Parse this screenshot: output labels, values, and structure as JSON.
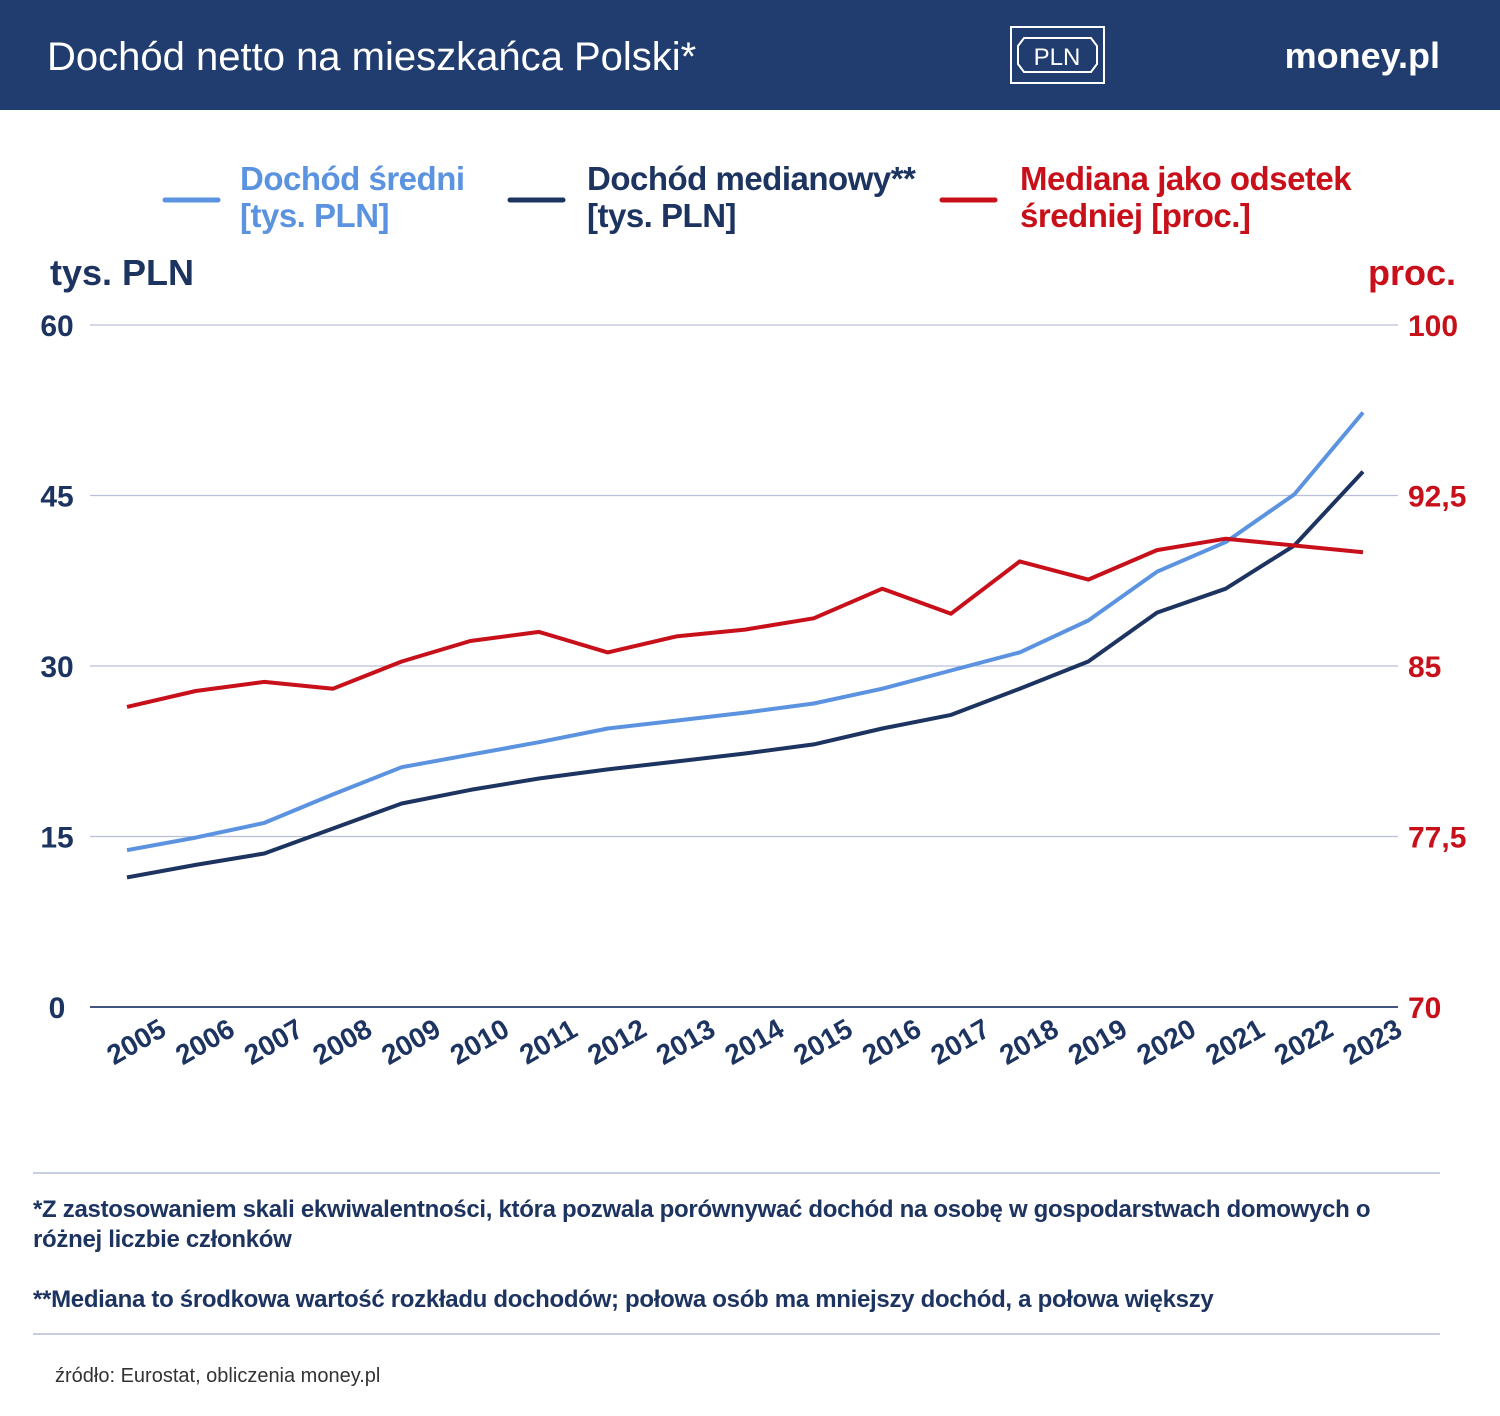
{
  "chart_data": {
    "type": "line",
    "title": "Dochód netto na mieszkańca Polski*",
    "badge": "PLN",
    "brand": "money.pl",
    "y_label": "tys. PLN",
    "y2_label": "proc.",
    "categories": [
      "2005",
      "2006",
      "2007",
      "2008",
      "2009",
      "2010",
      "2011",
      "2012",
      "2013",
      "2014",
      "2015",
      "2016",
      "2017",
      "2018",
      "2019",
      "2020",
      "2021",
      "2022",
      "2023"
    ],
    "series": [
      {
        "name": "Dochód średni\n[tys. PLN]",
        "color": "#5b93e0",
        "values": [
          13.8,
          14.9,
          16.2,
          18.7,
          21.1,
          22.2,
          23.3,
          24.5,
          25.2,
          25.9,
          26.7,
          28.0,
          29.6,
          31.2,
          34.0,
          38.3,
          40.9,
          45.1,
          52.3
        ]
      },
      {
        "name": "Dochód medianowy**\n[tys. PLN]",
        "color": "#1d3461",
        "values": [
          11.4,
          12.5,
          13.5,
          15.7,
          17.9,
          19.1,
          20.1,
          20.9,
          21.6,
          22.3,
          23.1,
          24.5,
          25.7,
          28.0,
          30.4,
          34.7,
          36.8,
          40.6,
          47.1
        ]
      },
      {
        "name": "Mediana jako odsetek\nśredniej [proc.]",
        "color": "#c8101a",
        "axis": "y2",
        "values": [
          83.2,
          83.9,
          84.3,
          84.0,
          85.2,
          86.1,
          86.5,
          85.6,
          86.3,
          86.6,
          87.1,
          88.4,
          87.3,
          89.6,
          88.8,
          90.1,
          90.6,
          90.3,
          90.0
        ]
      }
    ],
    "ylim": [
      0,
      60
    ],
    "yticks": [
      0,
      15,
      30,
      45,
      60
    ],
    "y2lim": [
      70,
      100
    ],
    "y2ticks": [
      70,
      {
        "value": 77.5,
        "label": "77,5"
      },
      85,
      {
        "value": 92.5,
        "label": "92,5"
      },
      100
    ],
    "grid": true,
    "footnotes": [
      "*Z zastosowaniem skali ekwiwalentności, która pozwala porównywać dochód na osobę w gospodarstwach domowych o różnej liczbie członków",
      "**Mediana to środkowa wartość rozkładu dochodów; połowa osób ma mniejszy dochód, a połowa większy"
    ],
    "source": "źródło: Eurostat, obliczenia money.pl"
  }
}
